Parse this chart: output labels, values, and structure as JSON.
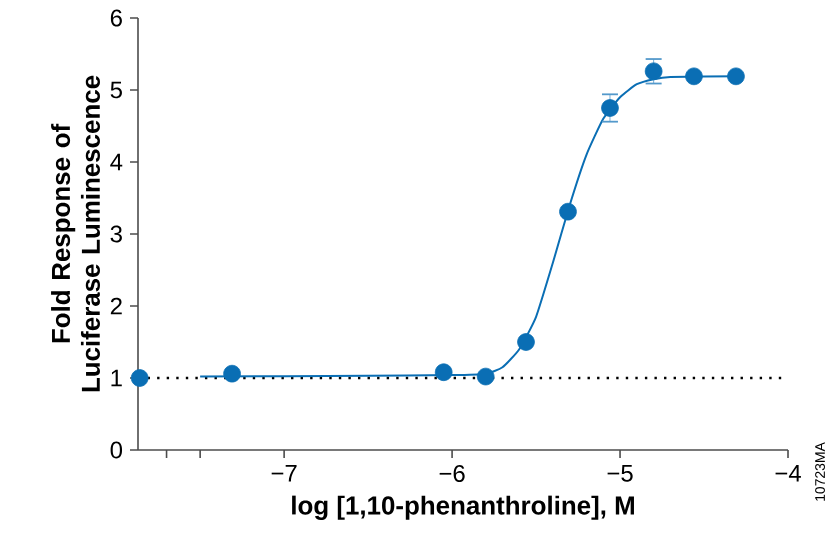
{
  "chart_data": {
    "type": "scatter",
    "xlabel": "log [1,10-phenanthroline], M",
    "ylabel": "Fold Response of Luciferase Luminescence",
    "xlim": [
      -7.87,
      -4
    ],
    "ylim": [
      0,
      6
    ],
    "xticks": [
      {
        "value": -7.7,
        "label": null
      },
      {
        "value": -7.5,
        "label": null
      },
      {
        "value": -7,
        "label": "−7"
      },
      {
        "value": -6,
        "label": "−6"
      },
      {
        "value": -5,
        "label": "−5"
      },
      {
        "value": -4,
        "label": "−4"
      }
    ],
    "yticks": [
      0,
      1,
      2,
      3,
      4,
      5,
      6
    ],
    "grid": false,
    "series": [
      {
        "color": "#0a6eb4",
        "marker": "circle",
        "x": [
          -7.86,
          -7.31,
          -6.05,
          -5.8,
          -5.56,
          -5.31,
          -5.06,
          -4.8,
          -4.56,
          -4.31
        ],
        "values": [
          1.0,
          1.06,
          1.08,
          1.02,
          1.5,
          3.31,
          4.75,
          5.26,
          5.19,
          5.19
        ],
        "errors": [
          null,
          null,
          null,
          null,
          null,
          null,
          0.19,
          0.17,
          null,
          null
        ]
      },
      {
        "type": "line",
        "color": "#0a6eb4",
        "line_style": "solid",
        "x": [
          -7.5,
          -6.5,
          -6.0,
          -5.8,
          -5.7,
          -5.6,
          -5.5,
          -5.4,
          -5.3,
          -5.2,
          -5.1,
          -5.0,
          -4.9,
          -4.8,
          -4.7,
          -4.3
        ],
        "values": [
          1.02,
          1.03,
          1.04,
          1.06,
          1.15,
          1.4,
          1.85,
          2.6,
          3.4,
          4.1,
          4.6,
          4.9,
          5.08,
          5.15,
          5.18,
          5.19
        ]
      }
    ],
    "ref_lines": [
      {
        "axis": "y",
        "value": 1,
        "color": "#000000",
        "line_style": "dotted"
      }
    ],
    "annotations": [
      "10723MA"
    ]
  }
}
